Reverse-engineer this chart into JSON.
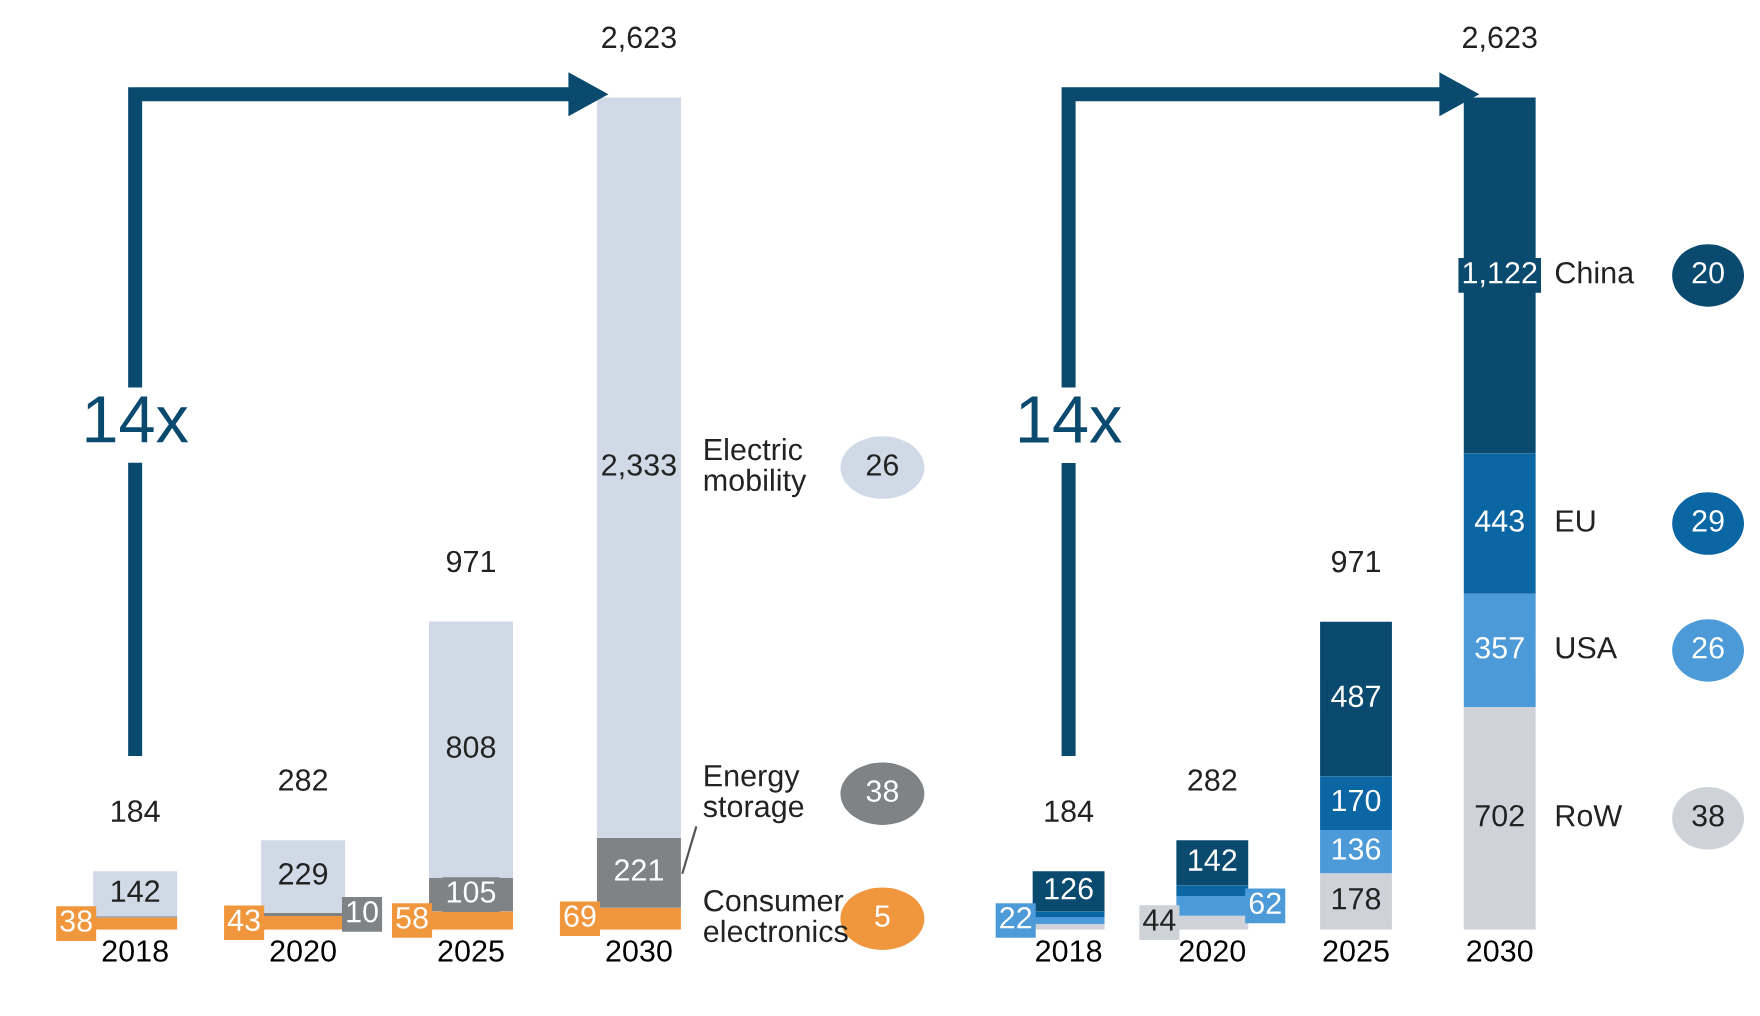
{
  "chart_data": [
    {
      "type": "bar",
      "stacked": true,
      "categories": [
        "2018",
        "2020",
        "2025",
        "2030"
      ],
      "tick_labels": "x",
      "grid": false,
      "legend": "right",
      "series": [
        {
          "name": "Consumer electronics",
          "color": "#f0963c",
          "values": [
            38,
            43,
            58,
            69
          ],
          "value_labels": [
            "38",
            "43",
            "58",
            "69"
          ]
        },
        {
          "name": "Energy storage",
          "color": "#808386",
          "values": [
            4,
            10,
            105,
            221
          ],
          "value_labels": [
            null,
            "10",
            "105",
            "221"
          ]
        },
        {
          "name": "Electric mobility",
          "color": "#cfdae6",
          "values": [
            142,
            229,
            808,
            2333
          ],
          "value_labels": [
            "142",
            "229",
            "808",
            "2,333"
          ]
        }
      ],
      "totals": [
        "184",
        "282",
        "971",
        "2,623"
      ],
      "annotations": [
        "14x",
        "5",
        "38",
        "26"
      ]
    },
    {
      "type": "bar",
      "stacked": true,
      "categories": [
        "2018",
        "2020",
        "2025",
        "2030"
      ],
      "tick_labels": "x",
      "grid": false,
      "legend": "right",
      "series": [
        {
          "name": "RoW",
          "color": "#cfd2d8",
          "values": [
            18,
            44,
            178,
            702
          ],
          "value_labels": [
            null,
            "44",
            "178",
            "702"
          ]
        },
        {
          "name": "USA",
          "color": "#4c9bd8",
          "values": [
            22,
            62,
            136,
            357
          ],
          "value_labels": [
            "22",
            "62",
            "136",
            "357"
          ]
        },
        {
          "name": "EU",
          "color": "#0b66a4",
          "values": [
            18,
            34,
            170,
            443
          ],
          "value_labels": [
            null,
            null,
            "170",
            "443"
          ]
        },
        {
          "name": "China",
          "color": "#0b4a6f",
          "values": [
            126,
            142,
            487,
            1122
          ],
          "value_labels": [
            "126",
            "142",
            "487",
            "1,122"
          ]
        }
      ],
      "totals": [
        "184",
        "282",
        "971",
        "2,623"
      ],
      "annotations": [
        "14x",
        "38",
        "26",
        "29",
        "20"
      ]
    }
  ]
}
